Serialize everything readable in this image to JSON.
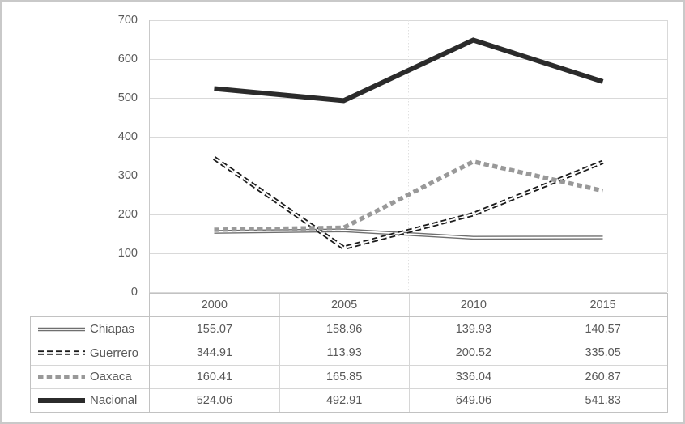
{
  "chart_data": {
    "type": "line",
    "title": "",
    "xlabel": "",
    "ylabel": "",
    "categories": [
      "2000",
      "2005",
      "2010",
      "2015"
    ],
    "yticks": [
      "700",
      "600",
      "500",
      "400",
      "300",
      "200",
      "100",
      "0"
    ],
    "ylim": [
      0,
      700
    ],
    "grid": {
      "horizontal": "solid-light-gray",
      "vertical": "dotted-light-gray"
    },
    "legend_position": "data-table-left-column",
    "colors": {
      "text": "#595959",
      "gridline": "#d9d9d9",
      "table_border": "#c2c2c2",
      "frame_border": "#c9c9c9"
    },
    "series": [
      {
        "name": "Chiapas",
        "values": [
          155.07,
          158.96,
          139.93,
          140.57
        ],
        "color": "#6f6f6f",
        "stroke_width": 4.6,
        "dash": "",
        "inner_gap": 1.8,
        "line_style": "double-solid-gray"
      },
      {
        "name": "Guerrero",
        "values": [
          344.91,
          113.93,
          200.52,
          335.05
        ],
        "color": "#1c1c1c",
        "stroke_width": 5.4,
        "dash": "7 4",
        "inner_gap": 1.8,
        "line_style": "double-dashed-black"
      },
      {
        "name": "Oaxaca",
        "values": [
          160.41,
          165.85,
          336.04,
          260.87
        ],
        "color": "#999999",
        "stroke_width": 5.4,
        "dash": "6.5 4.2",
        "inner_gap": 0,
        "line_style": "square-dashed-gray"
      },
      {
        "name": "Nacional",
        "values": [
          524.06,
          492.91,
          649.06,
          541.83
        ],
        "color": "#2b2b2b",
        "stroke_width": 6,
        "dash": "",
        "inner_gap": 0,
        "line_style": "thick-solid-dark"
      }
    ]
  }
}
